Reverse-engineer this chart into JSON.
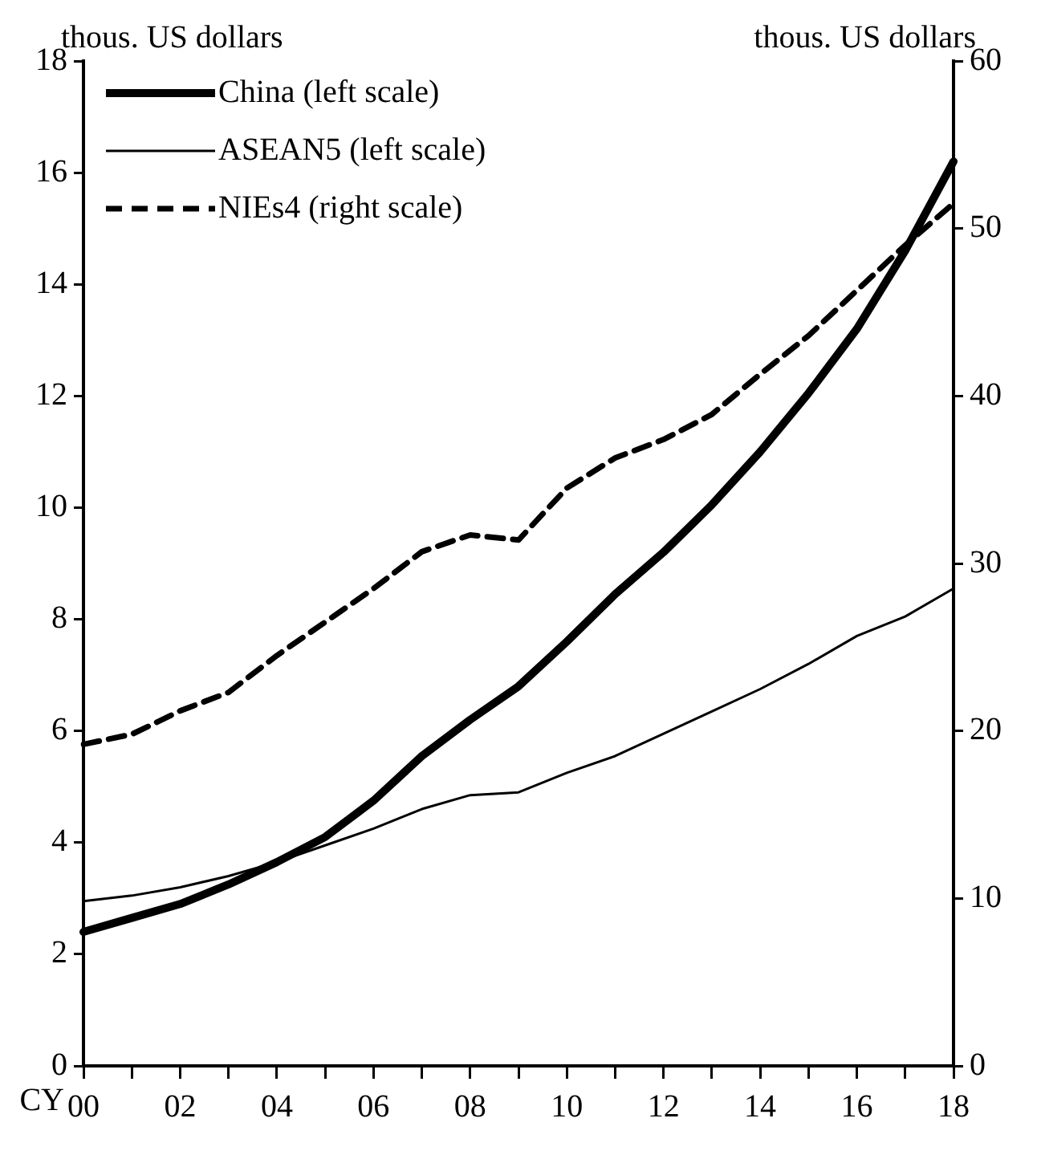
{
  "chart_data": {
    "type": "line",
    "xlabel": "CY",
    "ylabel": "thous. US dollars",
    "y2label": "thous. US dollars",
    "categories": [
      "00",
      null,
      "02",
      null,
      "04",
      null,
      "06",
      null,
      "08",
      null,
      "10",
      null,
      "12",
      null,
      "14",
      null,
      "16",
      null,
      "18"
    ],
    "series": [
      {
        "name": "China (left scale)",
        "color": "#000000",
        "line_style": "solid",
        "values": [
          2.4,
          2.65,
          2.9,
          3.25,
          3.65,
          4.1,
          4.75,
          5.55,
          6.2,
          6.8,
          7.6,
          8.45,
          9.2,
          10.05,
          11.0,
          12.05,
          13.2,
          14.6,
          16.2
        ]
      },
      {
        "name": "ASEAN5 (left scale)",
        "color": "#000000",
        "line_style": "solid",
        "values": [
          2.95,
          3.05,
          3.2,
          3.4,
          3.65,
          3.95,
          4.25,
          4.6,
          4.85,
          4.9,
          5.25,
          5.55,
          5.95,
          6.35,
          6.75,
          7.2,
          7.7,
          8.05,
          8.55
        ]
      },
      {
        "name": "NIEs4 (right scale)",
        "color": "#000000",
        "line_style": "dashed",
        "axis": "y2",
        "values": [
          19.2,
          19.8,
          21.2,
          22.3,
          24.5,
          26.5,
          28.5,
          30.7,
          31.7,
          31.4,
          34.5,
          36.3,
          37.4,
          38.9,
          41.3,
          43.6,
          46.3,
          49.0,
          51.5
        ]
      }
    ],
    "ylim": [
      0,
      18
    ],
    "yticks": [
      0,
      2,
      4,
      6,
      8,
      10,
      12,
      14,
      16,
      18
    ],
    "y2lim": [
      0,
      60
    ],
    "y2ticks": [
      0,
      10,
      20,
      30,
      40,
      50,
      60
    ],
    "legend": "top left",
    "grid": false,
    "marker": "none"
  }
}
